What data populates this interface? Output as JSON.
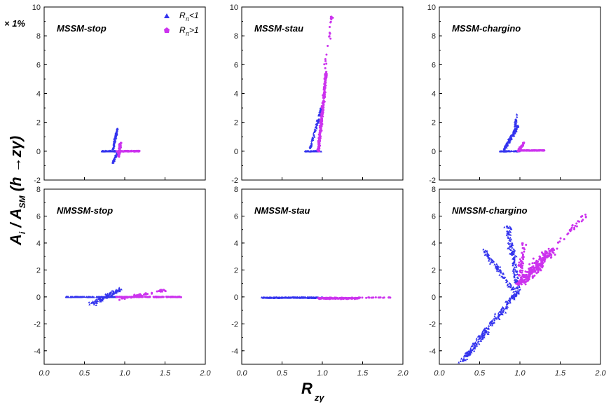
{
  "figure": {
    "scale_note": "× 1%",
    "y_label_main": "A",
    "y_label_sub_i": "i",
    "y_label_mid": " / A",
    "y_label_sub_sm": "SM",
    "y_label_tail": " (h →zγ)",
    "x_label_main": "R",
    "x_label_sub": "zγ"
  },
  "legend": {
    "entries": [
      {
        "label": "R",
        "sub": "π",
        "suffix": "<1",
        "color": "#3333ee",
        "marker": "triangle"
      },
      {
        "label": "R",
        "sub": "π",
        "suffix": ">1",
        "color": "#cc33ee",
        "marker": "pentagon"
      }
    ]
  },
  "colors": {
    "below": "#3333ee",
    "above": "#cc33ee"
  },
  "chart_data": [
    {
      "type": "scatter",
      "title": "MSSM-stop",
      "xlim": [
        0.0,
        2.0
      ],
      "ylim": [
        -2,
        10
      ],
      "yticks": [
        "-2",
        "0",
        "2",
        "4",
        "6",
        "8",
        "10"
      ],
      "xticks": [],
      "series": [
        {
          "name": "Rπ<1",
          "clusters": [
            {
              "x": [
                0.72,
                0.95
              ],
              "y": [
                0.0,
                0.0
              ],
              "n": 140,
              "spread": 0.05
            },
            {
              "x": [
                0.85,
                0.91
              ],
              "y": [
                0.0,
                1.6
              ],
              "n": 90,
              "spread": 0.06
            },
            {
              "x": [
                0.85,
                0.92
              ],
              "y": [
                -0.8,
                0.0
              ],
              "n": 60,
              "spread": 0.06
            }
          ]
        },
        {
          "name": "Rπ>1",
          "clusters": [
            {
              "x": [
                0.9,
                1.18
              ],
              "y": [
                0.0,
                0.0
              ],
              "n": 110,
              "spread": 0.05
            },
            {
              "x": [
                0.92,
                0.95
              ],
              "y": [
                -0.4,
                0.6
              ],
              "n": 50,
              "spread": 0.08
            }
          ]
        }
      ]
    },
    {
      "type": "scatter",
      "title": "MSSM-stau",
      "xlim": [
        0.0,
        2.0
      ],
      "ylim": [
        -2,
        10
      ],
      "yticks": [
        "-2",
        "0",
        "2",
        "4",
        "6",
        "8",
        "10"
      ],
      "xticks": [],
      "series": [
        {
          "name": "Rπ<1",
          "clusters": [
            {
              "x": [
                0.78,
                0.98
              ],
              "y": [
                0.0,
                0.0
              ],
              "n": 80,
              "spread": 0.06
            },
            {
              "x": [
                0.85,
                0.99
              ],
              "y": [
                0.2,
                3.0
              ],
              "n": 80,
              "spread": 0.08
            }
          ]
        },
        {
          "name": "Rπ>1",
          "clusters": [
            {
              "x": [
                0.95,
                1.05
              ],
              "y": [
                0.0,
                5.5
              ],
              "n": 220,
              "spread": 0.08
            },
            {
              "x": [
                1.02,
                1.12
              ],
              "y": [
                5.0,
                9.6
              ],
              "n": 25,
              "spread": 0.1
            }
          ]
        }
      ]
    },
    {
      "type": "scatter",
      "title": "MSSM-chargino",
      "xlim": [
        0.0,
        2.0
      ],
      "ylim": [
        -2,
        10
      ],
      "yticks": [
        "-2",
        "0",
        "2",
        "4",
        "6",
        "8",
        "10"
      ],
      "xticks": [],
      "series": [
        {
          "name": "Rπ<1",
          "clusters": [
            {
              "x": [
                0.75,
                1.0
              ],
              "y": [
                0.0,
                0.0
              ],
              "n": 70,
              "spread": 0.05
            },
            {
              "x": [
                0.8,
                0.98
              ],
              "y": [
                0.1,
                1.8
              ],
              "n": 140,
              "spread": 0.1
            },
            {
              "x": [
                0.92,
                0.96
              ],
              "y": [
                1.0,
                2.6
              ],
              "n": 30,
              "spread": 0.08
            }
          ]
        },
        {
          "name": "Rπ>1",
          "clusters": [
            {
              "x": [
                0.98,
                1.3
              ],
              "y": [
                0.05,
                0.05
              ],
              "n": 110,
              "spread": 0.04
            },
            {
              "x": [
                0.98,
                1.05
              ],
              "y": [
                0.0,
                0.6
              ],
              "n": 30,
              "spread": 0.08
            }
          ]
        }
      ]
    },
    {
      "type": "scatter",
      "title": "NMSSM-stop",
      "xlim": [
        0.0,
        2.0
      ],
      "ylim": [
        -5,
        8
      ],
      "yticks": [
        "-4",
        "-2",
        "0",
        "2",
        "4",
        "6",
        "8"
      ],
      "xticks": [
        "0.0",
        "0.5",
        "1.0",
        "1.5",
        "2.0"
      ],
      "series": [
        {
          "name": "Rπ<1",
          "clusters": [
            {
              "x": [
                0.27,
                0.95
              ],
              "y": [
                0.0,
                0.0
              ],
              "n": 200,
              "spread": 0.04
            },
            {
              "x": [
                0.6,
                0.95
              ],
              "y": [
                -0.5,
                0.6
              ],
              "n": 110,
              "spread": 0.25
            }
          ]
        },
        {
          "name": "Rπ>1",
          "clusters": [
            {
              "x": [
                0.9,
                1.7
              ],
              "y": [
                0.0,
                0.0
              ],
              "n": 160,
              "spread": 0.05
            },
            {
              "x": [
                0.9,
                1.5
              ],
              "y": [
                -0.2,
                0.5
              ],
              "n": 50,
              "spread": 0.15
            }
          ]
        }
      ]
    },
    {
      "type": "scatter",
      "title": "NMSSM-stau",
      "xlim": [
        0.0,
        2.0
      ],
      "ylim": [
        -5,
        8
      ],
      "yticks": [
        "-4",
        "-2",
        "0",
        "2",
        "4",
        "6",
        "8"
      ],
      "xticks": [
        "0.0",
        "0.5",
        "1.0",
        "1.5",
        "2.0"
      ],
      "series": [
        {
          "name": "Rπ<1",
          "clusters": [
            {
              "x": [
                0.25,
                1.0
              ],
              "y": [
                -0.05,
                -0.05
              ],
              "n": 260,
              "spread": 0.07
            }
          ]
        },
        {
          "name": "Rπ>1",
          "clusters": [
            {
              "x": [
                0.95,
                1.45
              ],
              "y": [
                -0.1,
                -0.1
              ],
              "n": 180,
              "spread": 0.09
            },
            {
              "x": [
                1.45,
                1.85
              ],
              "y": [
                -0.05,
                -0.05
              ],
              "n": 20,
              "spread": 0.04
            }
          ]
        }
      ]
    },
    {
      "type": "scatter",
      "title": "NMSSM-chargino",
      "xlim": [
        0.0,
        2.0
      ],
      "ylim": [
        -5,
        8
      ],
      "yticks": [
        "-4",
        "-2",
        "0",
        "2",
        "4",
        "6",
        "8"
      ],
      "xticks": [
        "0.0",
        "0.5",
        "1.0",
        "1.5",
        "2.0"
      ],
      "series": [
        {
          "name": "Rπ<1",
          "clusters": [
            {
              "x": [
                0.28,
                0.98
              ],
              "y": [
                -4.8,
                0.5
              ],
              "n": 260,
              "spread": 0.25
            },
            {
              "x": [
                0.55,
                0.92
              ],
              "y": [
                3.5,
                0.5
              ],
              "n": 90,
              "spread": 0.2
            },
            {
              "x": [
                0.85,
                0.98
              ],
              "y": [
                5.3,
                0.5
              ],
              "n": 140,
              "spread": 0.2
            }
          ]
        },
        {
          "name": "Rπ>1",
          "clusters": [
            {
              "x": [
                1.0,
                1.4
              ],
              "y": [
                1.0,
                3.5
              ],
              "n": 240,
              "spread": 0.45
            },
            {
              "x": [
                1.0,
                1.05
              ],
              "y": [
                1.5,
                4.0
              ],
              "n": 40,
              "spread": 0.15
            },
            {
              "x": [
                1.4,
                1.85
              ],
              "y": [
                3.5,
                6.3
              ],
              "n": 30,
              "spread": 0.2
            }
          ]
        }
      ]
    }
  ]
}
